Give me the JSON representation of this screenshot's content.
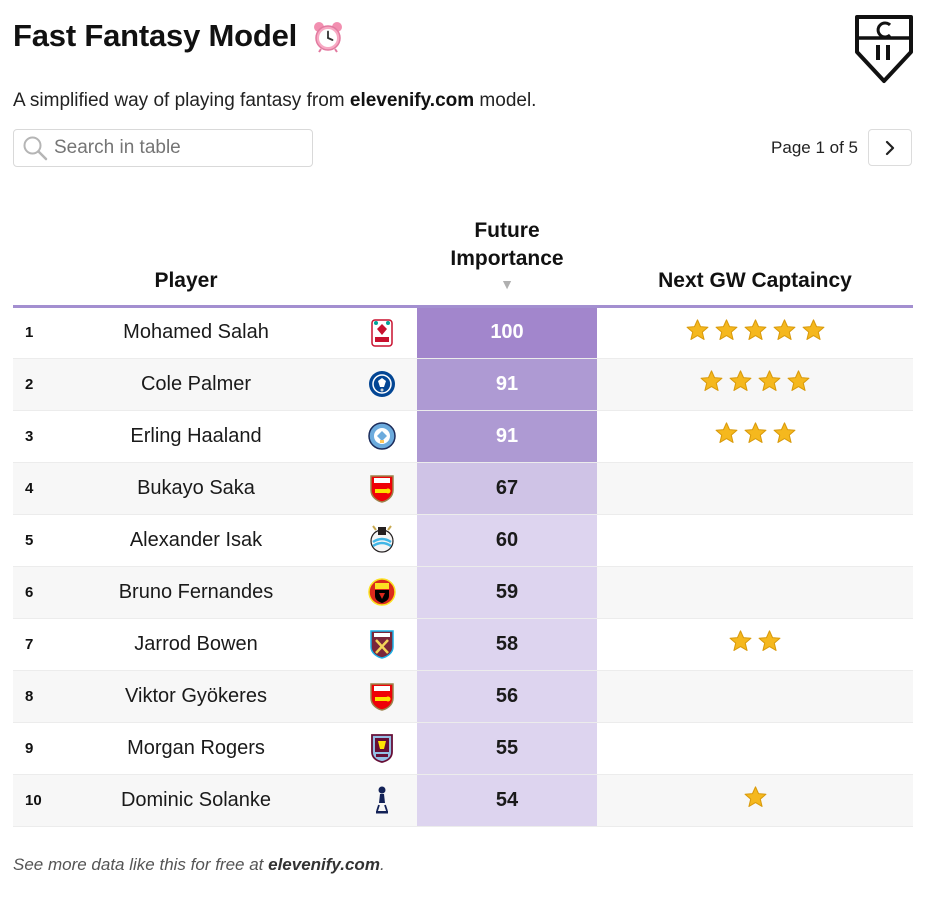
{
  "header": {
    "title": "Fast Fantasy Model",
    "icon": "alarm-clock-icon"
  },
  "subtitle": {
    "prefix": "A simplified way of playing fantasy from ",
    "site": "elevenify.com",
    "suffix": " model."
  },
  "search": {
    "placeholder": "Search in table"
  },
  "pager": {
    "label": "Page 1 of 5",
    "next_icon": "chevron-right-icon"
  },
  "table": {
    "columns": {
      "player": "Player",
      "importance_line1": "Future",
      "importance_line2": "Importance",
      "captaincy": "Next GW Captaincy"
    },
    "rows": [
      {
        "rank": "1",
        "name": "Mohamed Salah",
        "club": "liverpool",
        "importance": 100,
        "stars": 5
      },
      {
        "rank": "2",
        "name": "Cole Palmer",
        "club": "chelsea",
        "importance": 91,
        "stars": 4
      },
      {
        "rank": "3",
        "name": "Erling Haaland",
        "club": "man-city",
        "importance": 91,
        "stars": 3
      },
      {
        "rank": "4",
        "name": "Bukayo Saka",
        "club": "arsenal",
        "importance": 67,
        "stars": 0
      },
      {
        "rank": "5",
        "name": "Alexander Isak",
        "club": "newcastle",
        "importance": 60,
        "stars": 0
      },
      {
        "rank": "6",
        "name": "Bruno Fernandes",
        "club": "man-utd",
        "importance": 59,
        "stars": 0
      },
      {
        "rank": "7",
        "name": "Jarrod Bowen",
        "club": "west-ham",
        "importance": 58,
        "stars": 2
      },
      {
        "rank": "8",
        "name": "Viktor Gyökeres",
        "club": "arsenal",
        "importance": 56,
        "stars": 0
      },
      {
        "rank": "9",
        "name": "Morgan Rogers",
        "club": "aston-villa",
        "importance": 55,
        "stars": 0
      },
      {
        "rank": "10",
        "name": "Dominic Solanke",
        "club": "tottenham",
        "importance": 54,
        "stars": 1
      }
    ]
  },
  "colors": {
    "accent": "#a38fd0",
    "importance_high": "#a286cc",
    "importance_mid": "#ae9ad3",
    "importance_low": "#cfc3e6",
    "importance_lowest": "#ddd4ef",
    "star": "#f5b81e"
  },
  "footer": {
    "prefix": "See more data like this for free at ",
    "site": "elevenify.com",
    "suffix": "."
  }
}
